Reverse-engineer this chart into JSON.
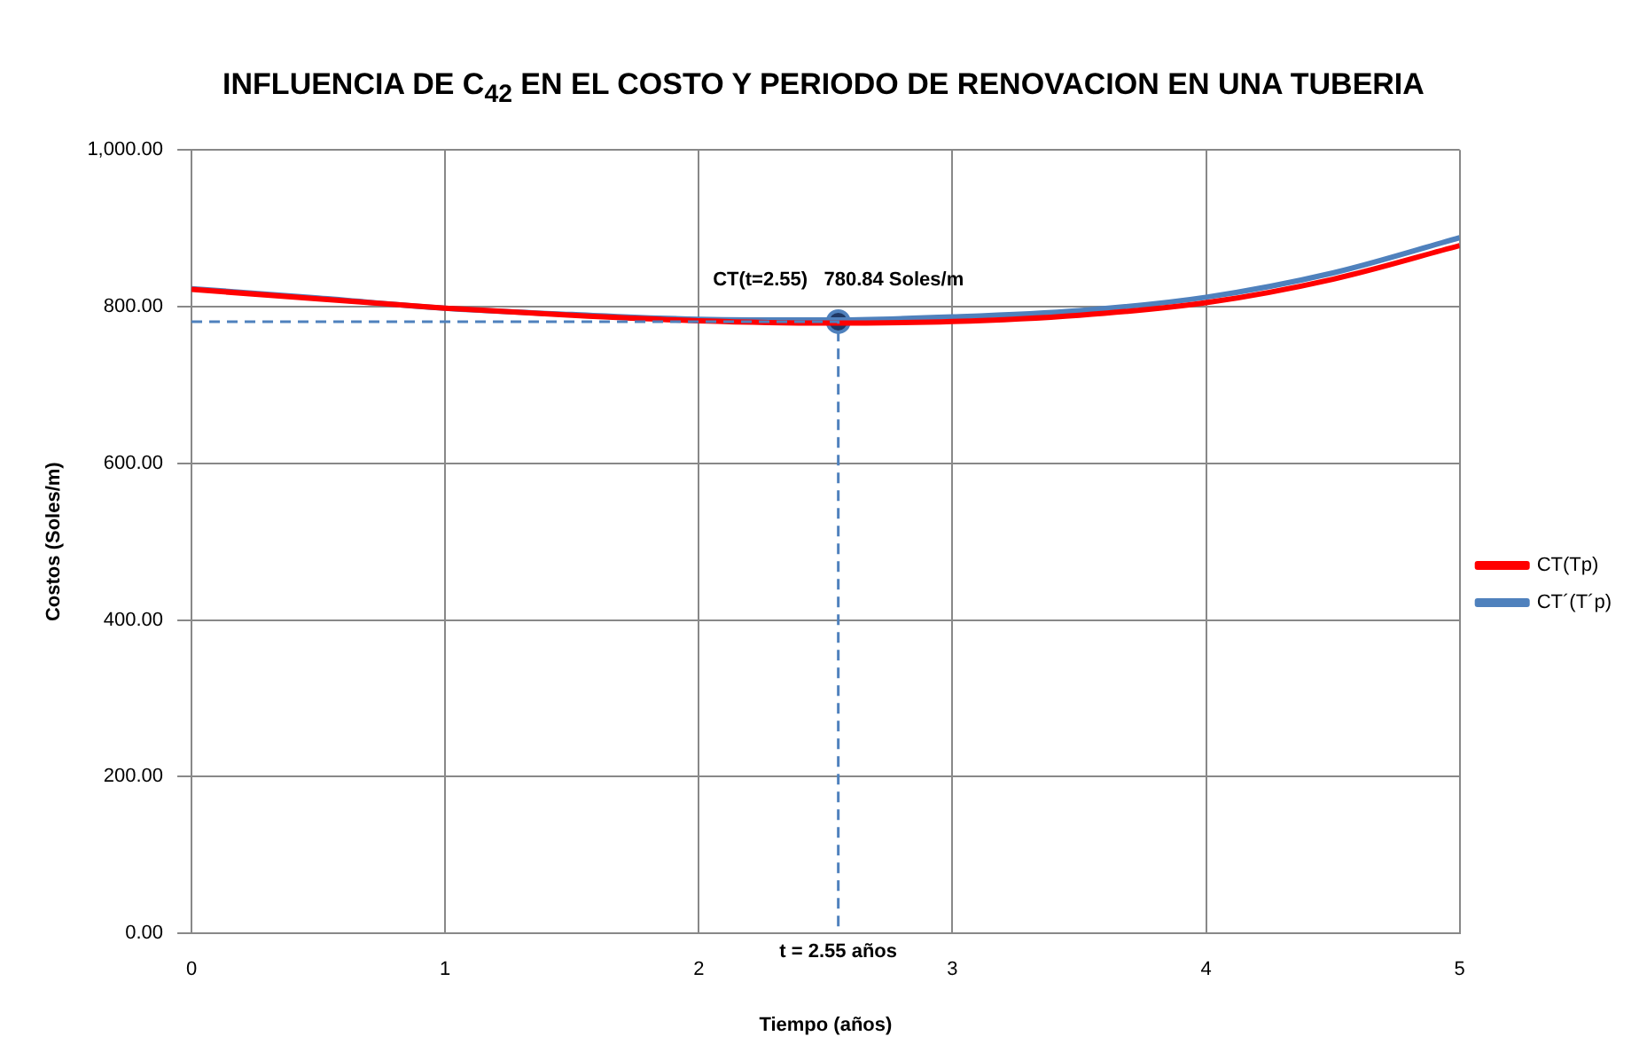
{
  "chart_data": {
    "type": "line",
    "title": "INFLUENCIA DE C$_{42}$ EN EL COSTO Y PERIODO DE RENOVACION EN UNA TUBERIA",
    "xlabel": "Tiempo (años)",
    "ylabel": "Costos (Soles/m)",
    "x": [
      0,
      0.5,
      1,
      1.5,
      2,
      2.5,
      3,
      3.5,
      4,
      4.5,
      5
    ],
    "series": [
      {
        "name": "CT(Tp)",
        "color": "#ff0000",
        "values": [
          822,
          810,
          798,
          789,
          782,
          779,
          781,
          789,
          805,
          835,
          878
        ]
      },
      {
        "name": "CT´(T´p)",
        "color": "#4f81bd",
        "values": [
          823,
          811,
          798,
          790,
          784,
          783,
          787,
          795,
          812,
          843,
          888
        ]
      },
      {
        "type": "scatter",
        "marker": "circle",
        "line_style": "dashed",
        "color": "#1f3864",
        "x": [
          2.55
        ],
        "values": [
          780.84
        ]
      }
    ],
    "annotations": [
      {
        "text": "CT(t=2.55)   780.84 Soles/m",
        "x": 2.55,
        "y": 780.84
      },
      "t = 2.55 años"
    ],
    "xlim": [
      0,
      5
    ],
    "xticks": [
      0,
      1,
      2,
      3,
      4,
      5
    ],
    "ylim": [
      0,
      1000
    ],
    "yticks": [
      {
        "value": 0,
        "label": "0.00"
      },
      {
        "value": 200,
        "label": "200.00"
      },
      {
        "value": 400,
        "label": "400.00"
      },
      {
        "value": 600,
        "label": "600.00"
      },
      {
        "value": 800,
        "label": "800.00"
      },
      {
        "value": 1000,
        "label": "1,000.00"
      }
    ],
    "grid": true,
    "legend": "right",
    "marker": "none",
    "line_style": "solid"
  }
}
